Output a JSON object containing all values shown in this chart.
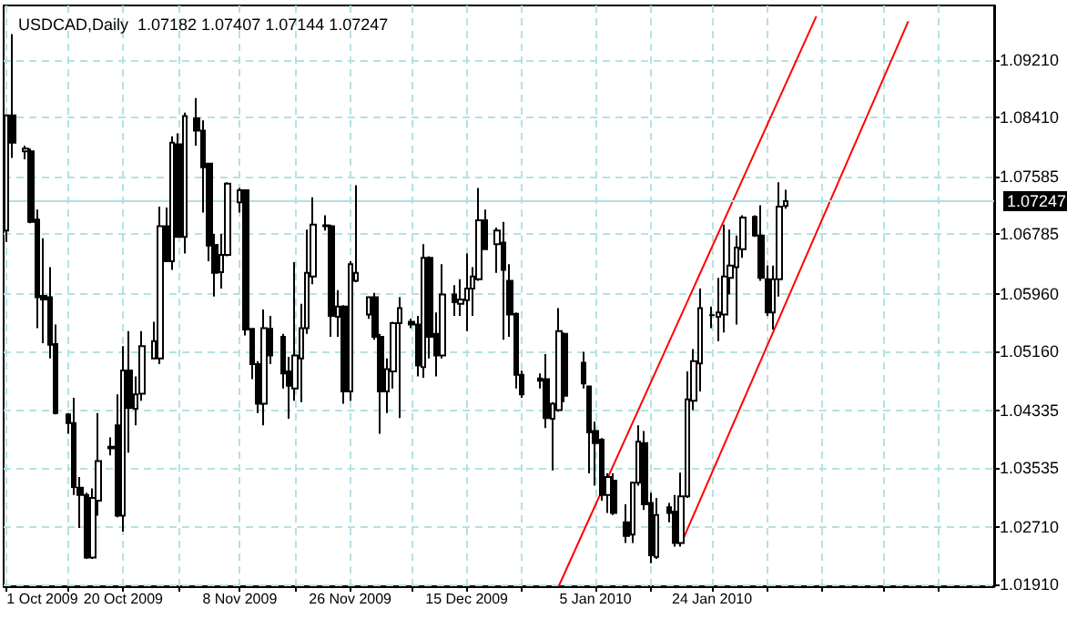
{
  "chart_data": {
    "type": "candlestick",
    "title": "USDCAD,Daily  1.07182 1.07407 1.07144 1.07247",
    "color": "#000000",
    "x": [
      "2009-10-01",
      "2009-10-02",
      "2009-10-04",
      "2009-10-05",
      "2009-10-06",
      "2009-10-07",
      "2009-10-08",
      "2009-10-09",
      "2009-10-11",
      "2009-10-12",
      "2009-10-13",
      "2009-10-14",
      "2009-10-15",
      "2009-10-16",
      "2009-10-18",
      "2009-10-19",
      "2009-10-20",
      "2009-10-21",
      "2009-10-22",
      "2009-10-23",
      "2009-10-25",
      "2009-10-26",
      "2009-10-27",
      "2009-10-28",
      "2009-10-29",
      "2009-10-30",
      "2009-11-01",
      "2009-11-02",
      "2009-11-03",
      "2009-11-04",
      "2009-11-05",
      "2009-11-06",
      "2009-11-08",
      "2009-11-09",
      "2009-11-10",
      "2009-11-11",
      "2009-11-12",
      "2009-11-13",
      "2009-11-15",
      "2009-11-16",
      "2009-11-17",
      "2009-11-18",
      "2009-11-19",
      "2009-11-20",
      "2009-11-22",
      "2009-11-23",
      "2009-11-24",
      "2009-11-25",
      "2009-11-26",
      "2009-11-27",
      "2009-11-29",
      "2009-11-30",
      "2009-12-01",
      "2009-12-02",
      "2009-12-03",
      "2009-12-04",
      "2009-12-06",
      "2009-12-07",
      "2009-12-08",
      "2009-12-09",
      "2009-12-10",
      "2009-12-11",
      "2009-12-13",
      "2009-12-14",
      "2009-12-15",
      "2009-12-16",
      "2009-12-17",
      "2009-12-18",
      "2009-12-20",
      "2009-12-21",
      "2009-12-22",
      "2009-12-23",
      "2009-12-24",
      "2009-12-27",
      "2009-12-28",
      "2009-12-29",
      "2009-12-30",
      "2009-12-31",
      "2010-01-03",
      "2010-01-04",
      "2010-01-05",
      "2010-01-06",
      "2010-01-07",
      "2010-01-08",
      "2010-01-10",
      "2010-01-11",
      "2010-01-12",
      "2010-01-13",
      "2010-01-14",
      "2010-01-15",
      "2010-01-17",
      "2010-01-18",
      "2010-01-19",
      "2010-01-20",
      "2010-01-21",
      "2010-01-22",
      "2010-01-24",
      "2010-01-25",
      "2010-01-26",
      "2010-01-27",
      "2010-01-28",
      "2010-01-29",
      "2010-01-31",
      "2010-02-01",
      "2010-02-02",
      "2010-02-03",
      "2010-02-04",
      "2010-02-05"
    ],
    "ohlc": [
      [
        1.0684,
        1.0844,
        1.0668,
        1.0844
      ],
      [
        1.0844,
        1.0957,
        1.0785,
        1.0806
      ],
      [
        1.0794,
        1.0802,
        1.0783,
        1.0798
      ],
      [
        1.0794,
        1.0798,
        1.0694,
        1.0696
      ],
      [
        1.0699,
        1.0713,
        1.0548,
        1.0591
      ],
      [
        1.0593,
        1.0673,
        1.0527,
        1.0588
      ],
      [
        1.0591,
        1.0633,
        1.0506,
        1.0525
      ],
      [
        1.0526,
        1.0553,
        1.0428,
        1.043
      ],
      [
        1.0428,
        1.043,
        1.0401,
        1.0416
      ],
      [
        1.0416,
        1.0451,
        1.0316,
        1.0327
      ],
      [
        1.0326,
        1.0341,
        1.027,
        1.0316
      ],
      [
        1.0316,
        1.0319,
        1.0227,
        1.0229
      ],
      [
        1.0229,
        1.0325,
        1.0227,
        1.0312
      ],
      [
        1.0308,
        1.043,
        1.0287,
        1.0363
      ],
      [
        1.0381,
        1.0396,
        1.0371,
        1.0383
      ],
      [
        1.0413,
        1.0456,
        1.0285,
        1.0287
      ],
      [
        1.0287,
        1.0523,
        1.0265,
        1.0489
      ],
      [
        1.0489,
        1.0544,
        1.0375,
        1.0437
      ],
      [
        1.0436,
        1.0481,
        1.0413,
        1.0456
      ],
      [
        1.0457,
        1.0544,
        1.0447,
        1.0523
      ],
      [
        1.0506,
        1.0557,
        1.0505,
        1.053
      ],
      [
        1.0506,
        1.0717,
        1.0498,
        1.069
      ],
      [
        1.069,
        1.0716,
        1.064,
        1.0641
      ],
      [
        1.0641,
        1.0815,
        1.0629,
        1.0806
      ],
      [
        1.0804,
        1.0819,
        1.0674,
        1.0675
      ],
      [
        1.0675,
        1.0848,
        1.0652,
        1.0843
      ],
      [
        1.084,
        1.0868,
        1.0802,
        1.0823
      ],
      [
        1.0823,
        1.0837,
        1.0709,
        1.0772
      ],
      [
        1.0777,
        1.0778,
        1.0641,
        1.0663
      ],
      [
        1.0664,
        1.0679,
        1.0592,
        1.0625
      ],
      [
        1.0626,
        1.0679,
        1.0603,
        1.065
      ],
      [
        1.065,
        1.0751,
        1.0648,
        1.0749
      ],
      [
        1.0723,
        1.0743,
        1.0709,
        1.074
      ],
      [
        1.074,
        1.0741,
        1.0538,
        1.0546
      ],
      [
        1.0547,
        1.0548,
        1.0477,
        1.0498
      ],
      [
        1.0498,
        1.0502,
        1.043,
        1.0443
      ],
      [
        1.0443,
        1.0574,
        1.0413,
        1.0548
      ],
      [
        1.0547,
        1.0565,
        1.0498,
        1.051
      ],
      [
        1.0536,
        1.054,
        1.0464,
        1.0485
      ],
      [
        1.0488,
        1.0508,
        1.0422,
        1.0468
      ],
      [
        1.0464,
        1.064,
        1.0447,
        1.051
      ],
      [
        1.0506,
        1.0582,
        1.0445,
        1.0548
      ],
      [
        1.0548,
        1.0685,
        1.054,
        1.0625
      ],
      [
        1.062,
        1.073,
        1.0609,
        1.0692
      ],
      [
        1.0691,
        1.0705,
        1.0684,
        1.069
      ],
      [
        1.069,
        1.0692,
        1.0536,
        1.0565
      ],
      [
        1.0564,
        1.0601,
        1.0536,
        1.0578
      ],
      [
        1.0578,
        1.058,
        1.0443,
        1.046
      ],
      [
        1.046,
        1.0641,
        1.0447,
        1.0637
      ],
      [
        1.0614,
        1.0747,
        1.0612,
        1.0625
      ],
      [
        1.0567,
        1.0592,
        1.0561,
        1.0591
      ],
      [
        1.0591,
        1.0597,
        1.0532,
        1.0536
      ],
      [
        1.0536,
        1.054,
        1.0401,
        1.046
      ],
      [
        1.046,
        1.0506,
        1.043,
        1.0491
      ],
      [
        1.0488,
        1.0557,
        1.0464,
        1.0555
      ],
      [
        1.0555,
        1.0591,
        1.0423,
        1.0576
      ],
      [
        1.0557,
        1.0561,
        1.0548,
        1.0553
      ],
      [
        1.0553,
        1.0565,
        1.0481,
        1.0496
      ],
      [
        1.0494,
        1.0665,
        1.0479,
        1.0646
      ],
      [
        1.0646,
        1.0648,
        1.0506,
        1.0536
      ],
      [
        1.054,
        1.057,
        1.0481,
        1.051
      ],
      [
        1.051,
        1.0637,
        1.0506,
        1.0595
      ],
      [
        1.0595,
        1.0608,
        1.0565,
        1.0584
      ],
      [
        1.0582,
        1.0616,
        1.0565,
        1.0588
      ],
      [
        1.0587,
        1.0652,
        1.0544,
        1.0603
      ],
      [
        1.0603,
        1.0633,
        1.0565,
        1.062
      ],
      [
        1.0616,
        1.0743,
        1.0614,
        1.0698
      ],
      [
        1.0698,
        1.0713,
        1.0657,
        1.0658
      ],
      [
        1.0665,
        1.0688,
        1.0625,
        1.0684
      ],
      [
        1.0667,
        1.0696,
        1.0532,
        1.0629
      ],
      [
        1.0614,
        1.0637,
        1.0536,
        1.0567
      ],
      [
        1.0568,
        1.057,
        1.0464,
        1.0483
      ],
      [
        1.0483,
        1.0489,
        1.0451,
        1.0456
      ],
      [
        1.0478,
        1.0485,
        1.0464,
        1.0475
      ],
      [
        1.0477,
        1.0512,
        1.0409,
        1.0423
      ],
      [
        1.0422,
        1.0445,
        1.035,
        1.0443
      ],
      [
        1.0434,
        1.0576,
        1.0432,
        1.0544
      ],
      [
        1.054,
        1.0542,
        1.0445,
        1.0454
      ],
      [
        1.05,
        1.0515,
        1.0464,
        1.0471
      ],
      [
        1.0467,
        1.0468,
        1.0346,
        1.0403
      ],
      [
        1.0405,
        1.0418,
        1.0329,
        1.0388
      ],
      [
        1.0393,
        1.0395,
        1.0308,
        1.0316
      ],
      [
        1.0316,
        1.0346,
        1.0291,
        1.0341
      ],
      [
        1.0336,
        1.0346,
        1.0288,
        1.0291
      ],
      [
        1.0278,
        1.0303,
        1.0249,
        1.0259
      ],
      [
        1.0261,
        1.0333,
        1.0249,
        1.0333
      ],
      [
        1.0333,
        1.0413,
        1.0329,
        1.039
      ],
      [
        1.0388,
        1.0405,
        1.0295,
        1.0303
      ],
      [
        1.0305,
        1.0319,
        1.0221,
        1.0232
      ],
      [
        1.023,
        1.0312,
        1.0227,
        1.0288
      ],
      [
        1.0299,
        1.0305,
        1.0278,
        1.0291
      ],
      [
        1.0293,
        1.0316,
        1.0244,
        1.0249
      ],
      [
        1.0249,
        1.0347,
        1.0244,
        1.0314
      ],
      [
        1.0314,
        1.0488,
        1.0312,
        1.0449
      ],
      [
        1.0447,
        1.0519,
        1.0434,
        1.0502
      ],
      [
        1.0499,
        1.0603,
        1.046,
        1.0576
      ],
      [
        1.0566,
        1.0578,
        1.0548,
        1.0566
      ],
      [
        1.0564,
        1.0618,
        1.053,
        1.057
      ],
      [
        1.0567,
        1.0692,
        1.0542,
        1.062
      ],
      [
        1.0618,
        1.0685,
        1.0595,
        1.0635
      ],
      [
        1.0633,
        1.0677,
        1.0553,
        1.066
      ],
      [
        1.0658,
        1.0705,
        1.0646,
        1.0702
      ],
      [
        1.0703,
        1.0705,
        1.0675,
        1.0677
      ],
      [
        1.0677,
        1.0719,
        1.0614,
        1.0618
      ],
      [
        1.0616,
        1.0635,
        1.0565,
        1.057
      ],
      [
        1.057,
        1.0635,
        1.0546,
        1.0616
      ],
      [
        1.0616,
        1.0751,
        1.0592,
        1.0717
      ],
      [
        1.07182,
        1.07407,
        1.07144,
        1.07247
      ]
    ],
    "series": [
      {
        "type": "line",
        "color": "#ff0000",
        "x": [
          "2009-12-30",
          "2010-02-10"
        ],
        "values": [
          1.0189,
          1.0982
        ]
      },
      {
        "type": "line",
        "color": "#ff0000",
        "x": [
          "2010-01-19",
          "2010-02-25"
        ],
        "values": [
          1.0249,
          1.0975
        ]
      }
    ],
    "xlim": [
      "2009-09-30T12:00",
      "2010-03-11"
    ],
    "xticks": [
      {
        "value": "2009-10-01",
        "label": "1 Oct 2009"
      },
      {
        "value": "2009-10-11",
        "label": null
      },
      {
        "value": "2009-10-20",
        "label": "20 Oct 2009"
      },
      {
        "value": "2009-10-29",
        "label": null
      },
      {
        "value": "2009-11-08",
        "label": "8 Nov 2009"
      },
      {
        "value": "2009-11-17",
        "label": null
      },
      {
        "value": "2009-11-26",
        "label": "26 Nov 2009"
      },
      {
        "value": "2009-12-06",
        "label": null
      },
      {
        "value": "2009-12-15",
        "label": "15 Dec 2009"
      },
      {
        "value": "2009-12-24",
        "label": null
      },
      {
        "value": "2010-01-05",
        "label": "5 Jan 2010"
      },
      {
        "value": "2010-01-14",
        "label": null
      },
      {
        "value": "2010-01-24",
        "label": "24 Jan 2010"
      },
      {
        "value": "2010-02-02",
        "label": null
      },
      {
        "value": "2010-02-11",
        "label": null
      },
      {
        "value": "2010-02-21",
        "label": null
      },
      {
        "value": "2010-03-02",
        "label": null
      }
    ],
    "ylim": [
      1.0189,
      1.0997
    ],
    "yticks": [
      {
        "value": 1.0191,
        "label": "1.01910"
      },
      {
        "value": 1.0271,
        "label": "1.02710"
      },
      {
        "value": 1.03535,
        "label": "1.03535"
      },
      {
        "value": 1.04335,
        "label": "1.04335"
      },
      {
        "value": 1.0516,
        "label": "1.05160"
      },
      {
        "value": 1.0596,
        "label": "1.05960"
      },
      {
        "value": 1.06785,
        "label": "1.06785"
      },
      {
        "value": 1.07585,
        "label": "1.07585"
      },
      {
        "value": 1.0841,
        "label": "1.08410"
      },
      {
        "value": 1.0921,
        "label": "1.09210"
      }
    ],
    "ref_lines": [
      {
        "axis": "y",
        "value": 1.07247,
        "label": "1.07247",
        "color": "#b0e0e0"
      }
    ],
    "grid": true
  }
}
